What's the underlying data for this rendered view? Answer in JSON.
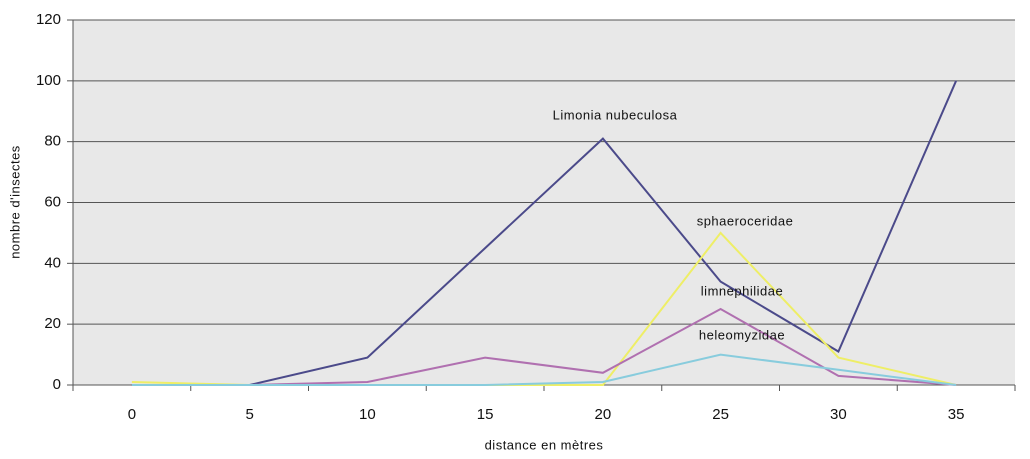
{
  "chart_data": {
    "type": "line",
    "x_label": "distance en mètres",
    "y_label": "nombre d'insectes",
    "categories": [
      "0",
      "5",
      "10",
      "15",
      "20",
      "25",
      "30",
      "35"
    ],
    "series": [
      {
        "name": "Limonia nubeculosa",
        "color": "#4b4a8a",
        "values": [
          0,
          0,
          9,
          45,
          81,
          34,
          11,
          100
        ]
      },
      {
        "name": "sphaeroceridae",
        "color": "#eeee66",
        "values": [
          1,
          0,
          0,
          0,
          0,
          50,
          9,
          0
        ]
      },
      {
        "name": "limnephilidae",
        "color": "#b070b0",
        "values": [
          0,
          0,
          1,
          9,
          4,
          25,
          3,
          0
        ]
      },
      {
        "name": "heleomyzidae",
        "color": "#88ccdd",
        "values": [
          0,
          0,
          0,
          0,
          1,
          10,
          5,
          0
        ]
      }
    ],
    "ylim": [
      0,
      120
    ],
    "yticks": [
      0,
      20,
      40,
      60,
      80,
      100,
      120
    ],
    "grid": true
  }
}
